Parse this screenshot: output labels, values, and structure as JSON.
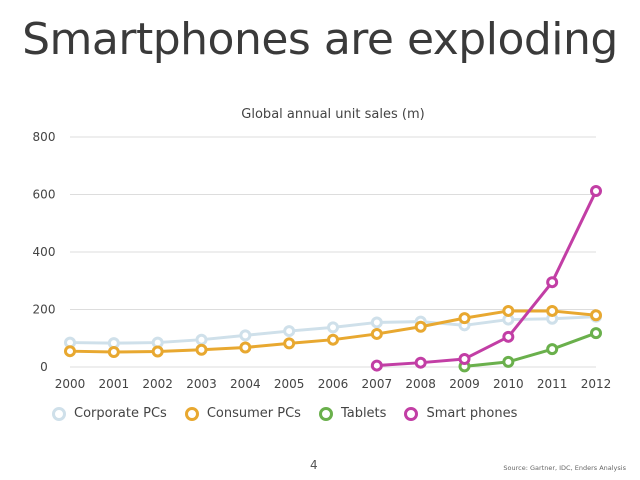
{
  "slide": {
    "title": "Smartphones are exploding",
    "page_number": "4",
    "source": "Source: Gartner, IDC, Enders Analysis"
  },
  "chart_data": {
    "type": "line",
    "title": "Global annual unit sales (m)",
    "xlabel": "",
    "ylabel": "",
    "x": [
      "2000",
      "2001",
      "2002",
      "2003",
      "2004",
      "2005",
      "2006",
      "2007",
      "2008",
      "2009",
      "2010",
      "2011",
      "2012"
    ],
    "xlim": [
      2000,
      2012
    ],
    "ylim": [
      0,
      800
    ],
    "yticks": [
      "0",
      "200",
      "400",
      "600",
      "800"
    ],
    "grid": true,
    "legend_position": "bottom",
    "series": [
      {
        "name": "Corporate PCs",
        "color": "#cfe0ea",
        "values": [
          85,
          83,
          85,
          95,
          110,
          125,
          138,
          155,
          158,
          145,
          165,
          168,
          175
        ]
      },
      {
        "name": "Consumer PCs",
        "color": "#e8a830",
        "values": [
          55,
          52,
          54,
          60,
          68,
          82,
          95,
          115,
          140,
          170,
          195,
          195,
          180
        ]
      },
      {
        "name": "Tablets",
        "color": "#6ab04c",
        "values": [
          null,
          null,
          null,
          null,
          null,
          null,
          null,
          null,
          null,
          2,
          18,
          62,
          118
        ]
      },
      {
        "name": "Smart phones",
        "color": "#c23ea5",
        "values": [
          null,
          null,
          null,
          null,
          null,
          null,
          null,
          5,
          15,
          28,
          105,
          295,
          612
        ]
      }
    ]
  }
}
